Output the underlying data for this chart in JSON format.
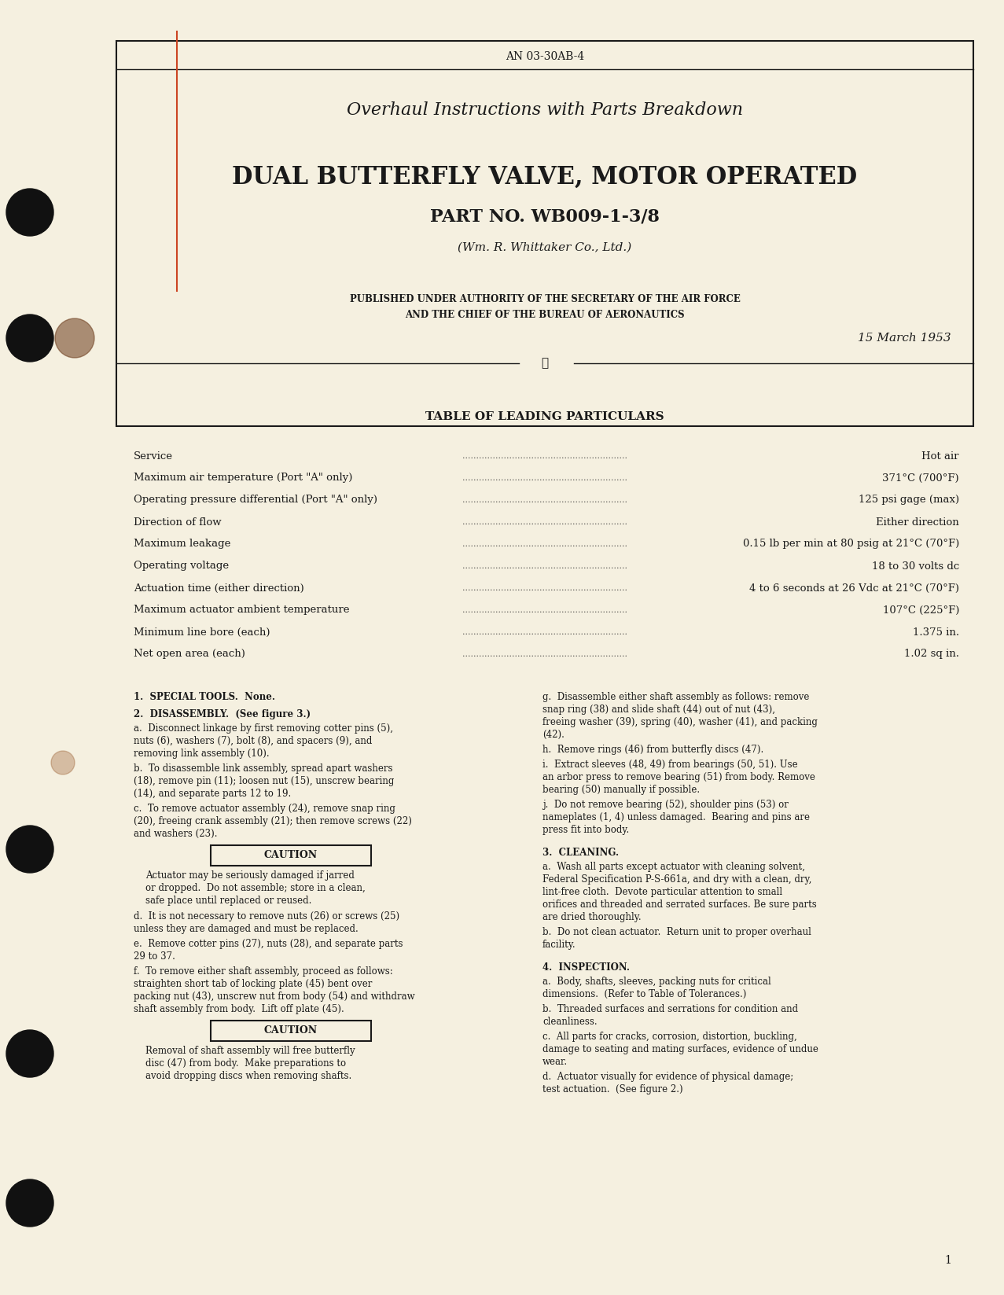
{
  "bg_color": "#f5f0e0",
  "page_bg": "#f5f0e0",
  "text_color": "#1a1a1a",
  "doc_number": "AN 03-30AB-4",
  "title1": "Overhaul Instructions with Parts Breakdown",
  "title2": "DUAL BUTTERFLY VALVE, MOTOR OPERATED",
  "title3": "PART NO. WB009-1-3/8",
  "title4": "(Wm. R. Whittaker Co., Ltd.)",
  "authority_line1": "PUBLISHED UNDER AUTHORITY OF THE SECRETARY OF THE AIR FORCE",
  "authority_line2": "AND THE CHIEF OF THE BUREAU OF AERONAUTICS",
  "date": "15 March 1953",
  "table_heading": "TABLE OF LEADING PARTICULARS",
  "particulars": [
    [
      "Service",
      "Hot air"
    ],
    [
      "Maximum air temperature (Port \"A\" only)",
      "371°C (700°F)"
    ],
    [
      "Operating pressure differential (Port \"A\" only)",
      "125 psi gage (max)"
    ],
    [
      "Direction of flow",
      "Either direction"
    ],
    [
      "Maximum leakage",
      "0.15 lb per min at 80 psig at 21°C (70°F)"
    ],
    [
      "Operating voltage",
      "18 to 30 volts dc"
    ],
    [
      "Actuation time (either direction)",
      "4 to 6 seconds at 26 Vdc at 21°C (70°F)"
    ],
    [
      "Maximum actuator ambient temperature",
      "107°C (225°F)"
    ],
    [
      "Minimum line bore (each)",
      "1.375 in."
    ],
    [
      "Net open area (each)",
      "1.02 sq in."
    ]
  ],
  "section1_title": "1.  SPECIAL TOOLS.  None.",
  "section2_title": "2.  DISASSEMBLY.  (See figure 3.)",
  "section2_a": "   a.  Disconnect linkage by first removing cotter pins (5), nuts (6), washers (7), bolt (8), and spacers (9), and removing link assembly (10).",
  "section2_b": "   b.  To disassemble link assembly, spread apart washers (18), remove pin (11); loosen nut (15), unscrew bearing (14), and separate parts 12 to 19.",
  "section2_c": "   c.  To remove actuator assembly (24), remove snap ring (20), freeing crank assembly (21); then remove screws (22) and washers (23).",
  "caution1": "CAUTION",
  "caution1_text": "Actuator may be seriously damaged if jarred\nor dropped.  Do not assemble; store in a clean,\nsafe place until replaced or reused.",
  "section2_d": "   d.  It is not necessary to remove nuts (26) or screws (25) unless they are damaged and must be replaced.",
  "section2_e": "   e.  Remove cotter pins (27), nuts (28), and separate parts 29 to 37.",
  "section2_f": "   f.  To remove either shaft assembly, proceed as follows:  straighten short tab of locking plate (45) bent over packing nut (43), unscrew nut from body (54) and withdraw shaft assembly from body.  Lift off plate (45).",
  "caution2": "CAUTION",
  "caution2_text": "Removal of shaft assembly will free butterfly\ndisc (47) from body.  Make preparations to\navoid dropping discs when removing shafts.",
  "section2_g": "   g.  Disassemble either shaft assembly as follows: remove snap ring (38) and slide shaft (44) out of nut (43), freeing washer (39), spring (40), washer (41), and packing (42).",
  "section2_h": "   h.  Remove rings (46) from butterfly discs (47).",
  "section2_i": "   i.  Extract sleeves (48, 49) from bearings (50, 51). Use an arbor press to remove bearing (51) from body. Remove bearing (50) manually if possible.",
  "section2_j": "   j.  Do not remove bearing (52), shoulder pins (53) or nameplates (1, 4) unless damaged.  Bearing and pins are press fit into body.",
  "section3_title": "3.  CLEANING.",
  "section3_a": "   a.  Wash all parts except actuator with cleaning solvent, Federal Specification P-S-661a, and dry with a clean, dry, lint-free cloth.  Devote particular attention to small orifices and threaded and serrated surfaces. Be sure parts are dried thoroughly.",
  "section3_b": "   b.  Do not clean actuator.  Return unit to proper overhaul facility.",
  "section4_title": "4.  INSPECTION.",
  "section4_a": "   a.  Body, shafts, sleeves, packing nuts for critical dimensions.  (Refer to Table of Tolerances.)",
  "section4_b": "   b.  Threaded surfaces and serrations for condition and cleanliness.",
  "section4_c": "   c.  All parts for cracks, corrosion, distortion, buckling, damage to seating and mating surfaces, evidence of undue wear.",
  "section4_d": "   d.  Actuator visually for evidence of physical damage; test actuation.  (See figure 2.)",
  "page_number": "1"
}
